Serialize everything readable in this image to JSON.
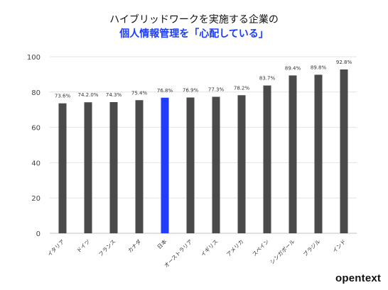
{
  "title": {
    "line1": "ハイブリッドワークを実施する企業の",
    "line2": "個人情報管理を「心配している」"
  },
  "brand": "opentext",
  "colors": {
    "bar": "#4a4a4a",
    "highlight": "#1f3cff",
    "grid": "#e3e3e3",
    "axis": "#bfbfbf"
  },
  "chart_data": {
    "type": "bar",
    "categories": [
      "イタリア",
      "ドイツ",
      "フランス",
      "カナダ",
      "日本",
      "オーストラリア",
      "イギリス",
      "アメリカ",
      "スペイン",
      "シンガポール",
      "ブラジル",
      "インド"
    ],
    "values": [
      73.6,
      74.2,
      74.3,
      75.4,
      76.8,
      76.9,
      77.3,
      78.2,
      83.7,
      89.4,
      89.8,
      92.8
    ],
    "data_labels": [
      "73.6%",
      "74.2.0%",
      "74.3%",
      "75.4%",
      "76.8%",
      "76.9%",
      "77.3%",
      "78.2%",
      "83.7%",
      "89.4%",
      "89.8%",
      "92.8%"
    ],
    "highlight_category": "日本",
    "ylim": [
      0,
      100
    ],
    "yticks": [
      "0",
      "20",
      "40",
      "60",
      "80",
      "100"
    ],
    "grid": true
  }
}
